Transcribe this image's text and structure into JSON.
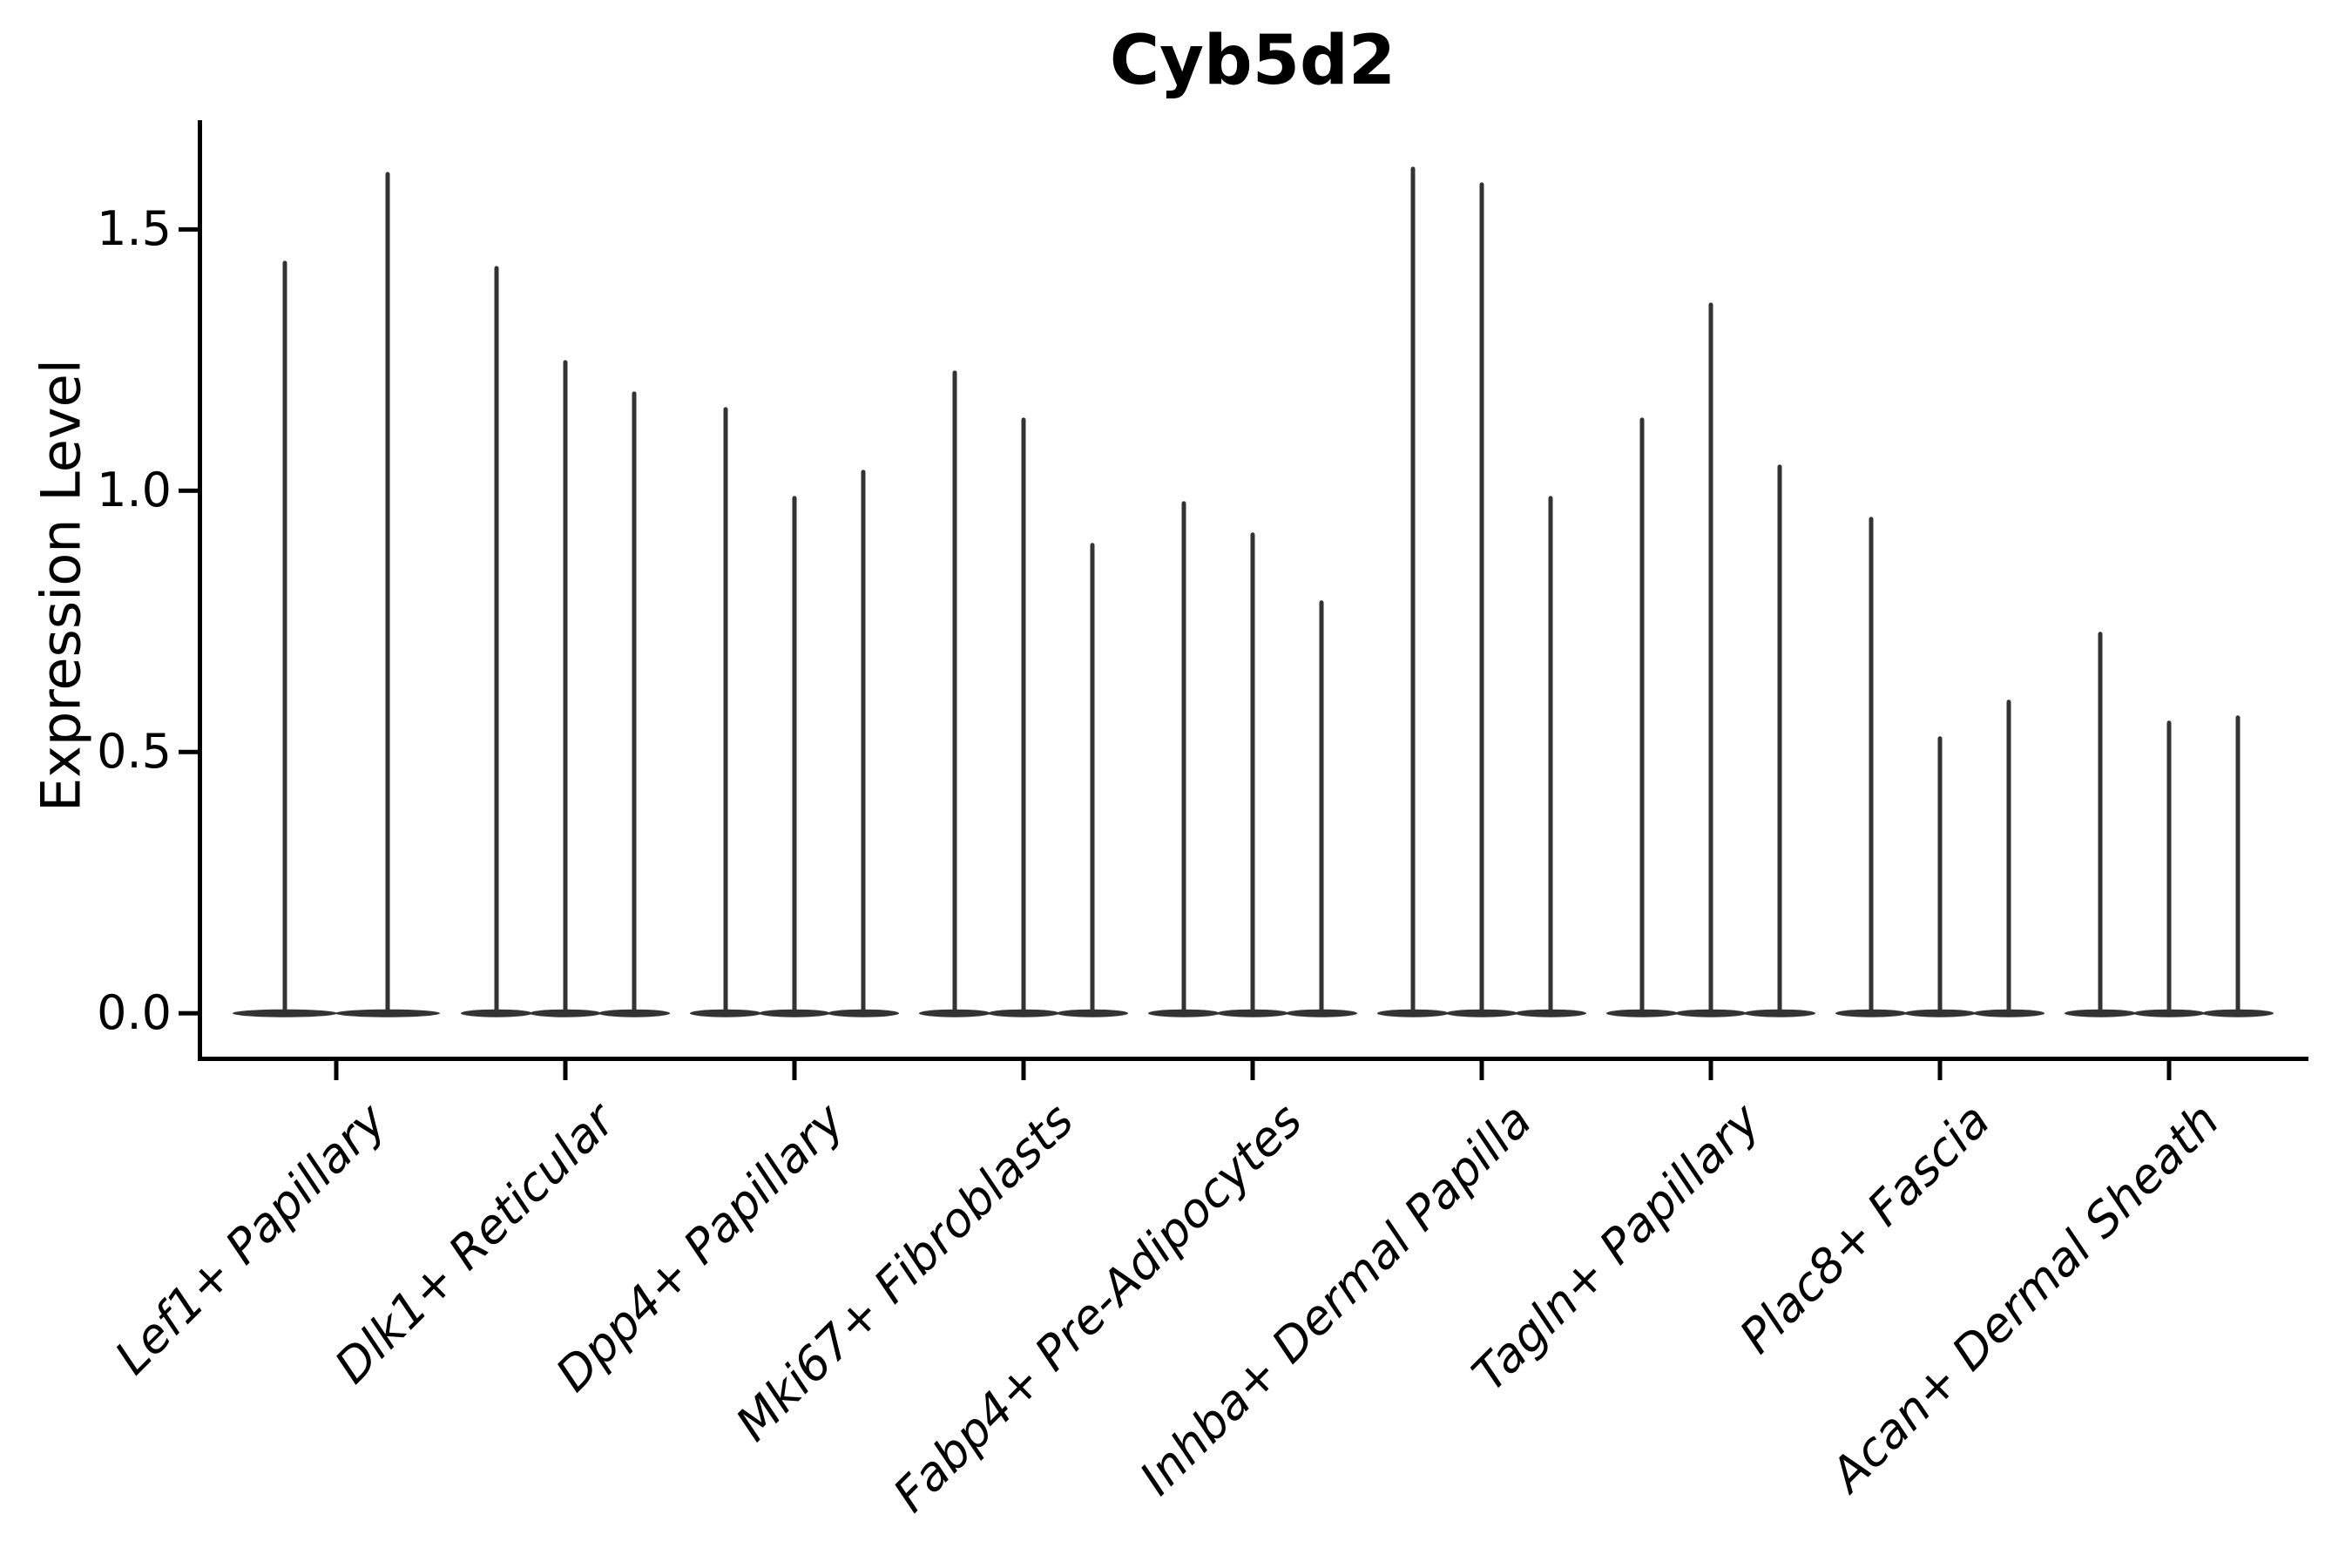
{
  "figure": {
    "title": "Cyb5d2",
    "ylabel": "Expression Level"
  },
  "chart_data": {
    "type": "violin",
    "title": "Cyb5d2",
    "xlabel": "",
    "ylabel": "Expression Level",
    "grid": false,
    "legend_position": "none",
    "ylim": [
      -0.083,
      1.709
    ],
    "yticks": [
      0.0,
      0.5,
      1.0,
      1.5
    ],
    "ytick_labels": [
      "0.0",
      "0.5",
      "1.0",
      "1.5"
    ],
    "categories": [
      "Lef1+ Papillary",
      "Dlk1+ Reticular",
      "Dpp4+ Papillary",
      "Mki67+ Fibroblasts",
      "Fabp4+ Pre-Adipocytes",
      "Inhba+ Dermal Papilla",
      "Tagln+ Papillary",
      "Plac8+ Fascia",
      "Acan+ Dermal Sheath"
    ],
    "description": "Grouped single-cell violin plot; each category holds 2-3 ultra-thin violins whose density mass sits at expression 0 (flat wide base) with a narrow spike rising to the listed maximum expression value.",
    "violin_peaks": [
      [
        1.44,
        1.61
      ],
      [
        1.43,
        1.25,
        1.19
      ],
      [
        1.16,
        0.99,
        1.04
      ],
      [
        1.23,
        1.14,
        0.9
      ],
      [
        0.98,
        0.92,
        0.79
      ],
      [
        1.62,
        1.59,
        0.99
      ],
      [
        1.14,
        1.36,
        1.05
      ],
      [
        0.95,
        0.53,
        0.6
      ],
      [
        0.73,
        0.56,
        0.57
      ]
    ],
    "colors": {
      "violin": "#333333",
      "axis": "#000000",
      "text": "#000000",
      "background": "#ffffff"
    }
  }
}
